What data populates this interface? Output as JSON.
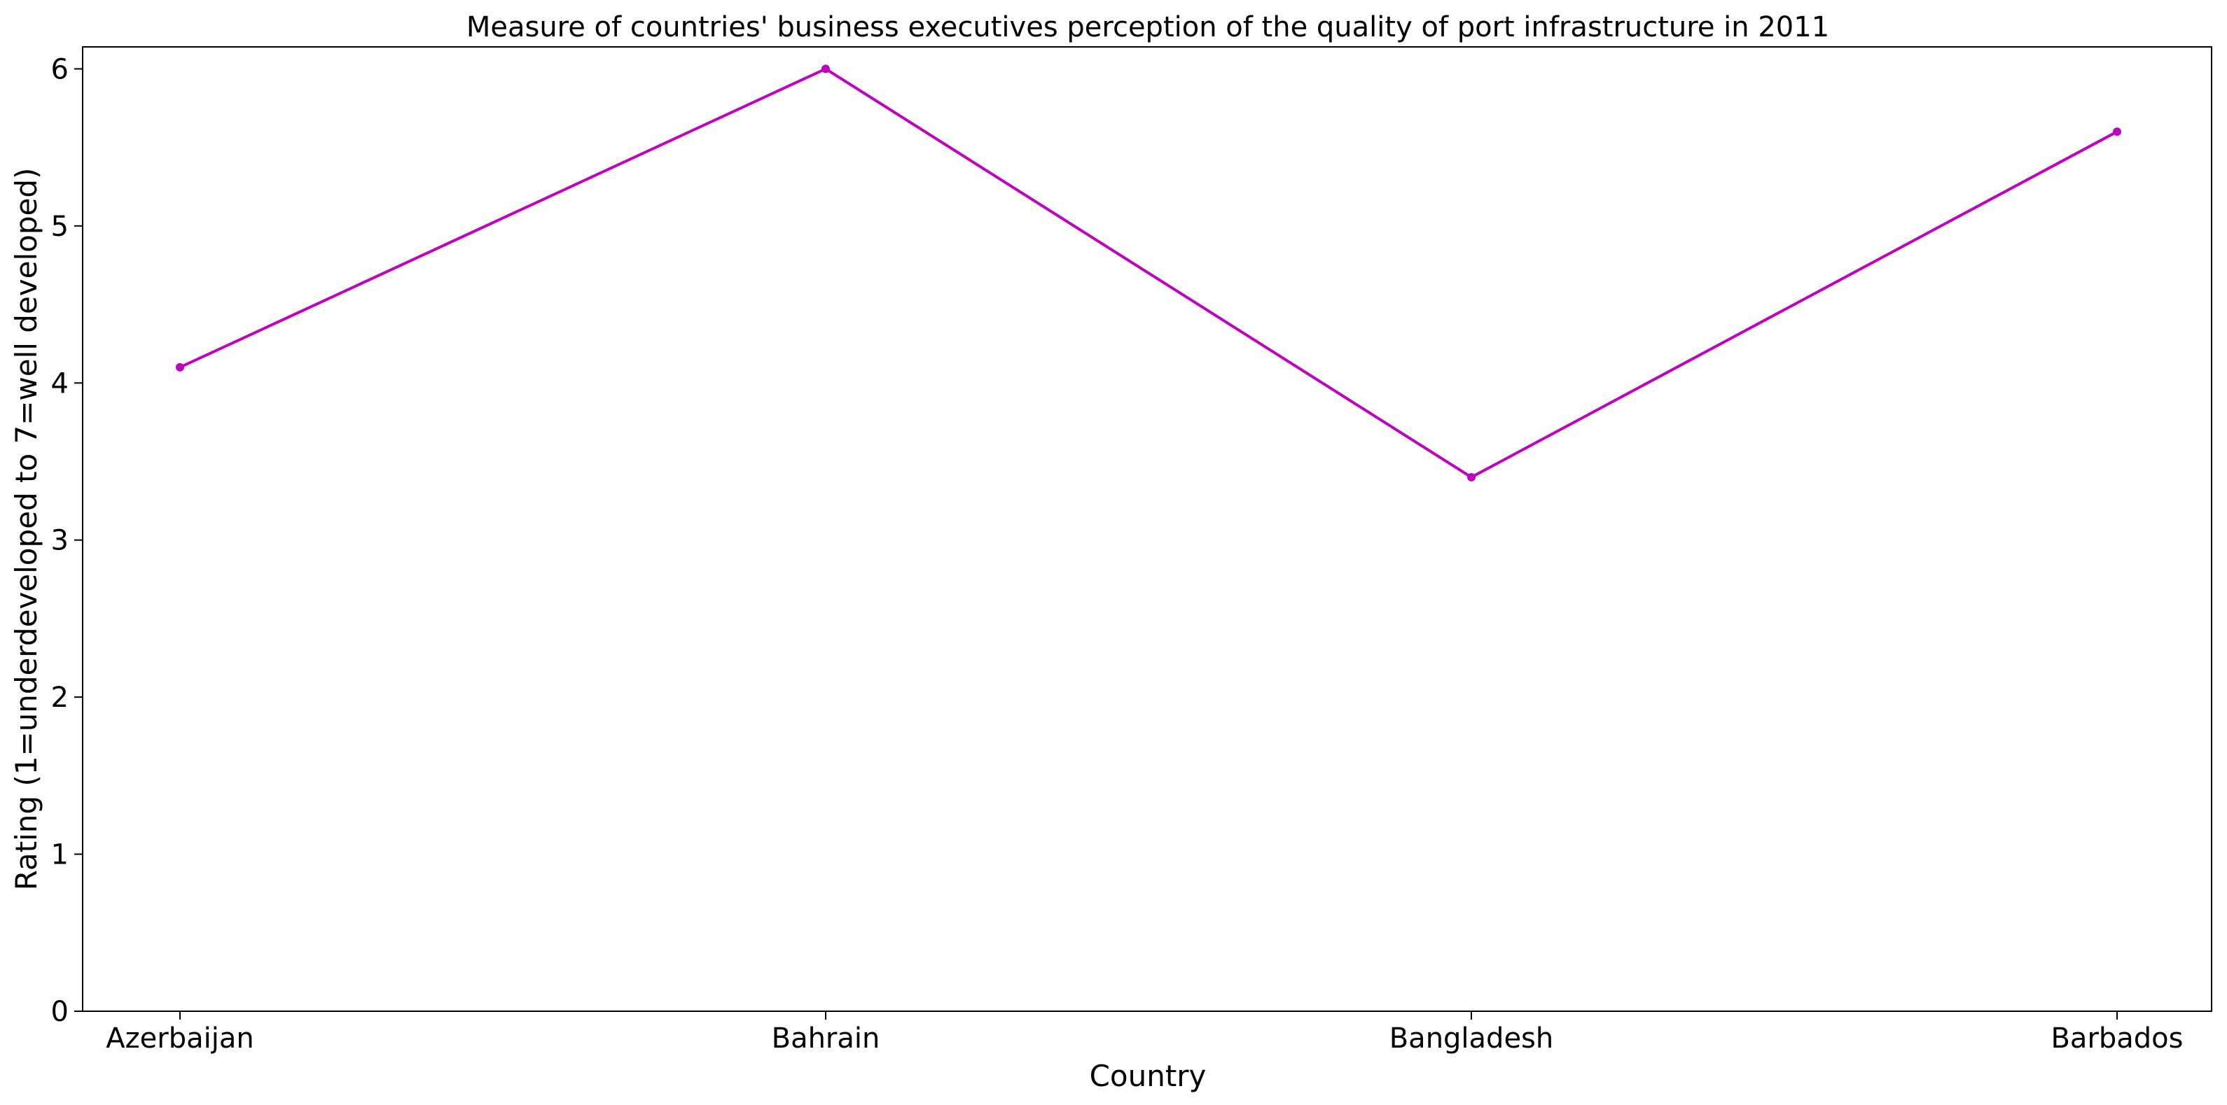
{
  "chart_data": {
    "type": "line",
    "title": "Measure of countries' business executives perception of the quality of port infrastructure in 2011",
    "xlabel": "Country",
    "ylabel": "Rating (1=underdeveloped to 7=well developed)",
    "categories": [
      "Azerbaijan",
      "Bahrain",
      "Bangladesh",
      "Barbados"
    ],
    "series": [
      {
        "values": [
          4.1,
          6.0,
          3.4,
          5.6
        ],
        "color": "#bf00bf"
      }
    ],
    "ylim": [
      0,
      6.14
    ],
    "yticks": [
      0,
      1,
      2,
      3,
      4,
      5,
      6
    ],
    "grid": false,
    "legend": "none"
  }
}
